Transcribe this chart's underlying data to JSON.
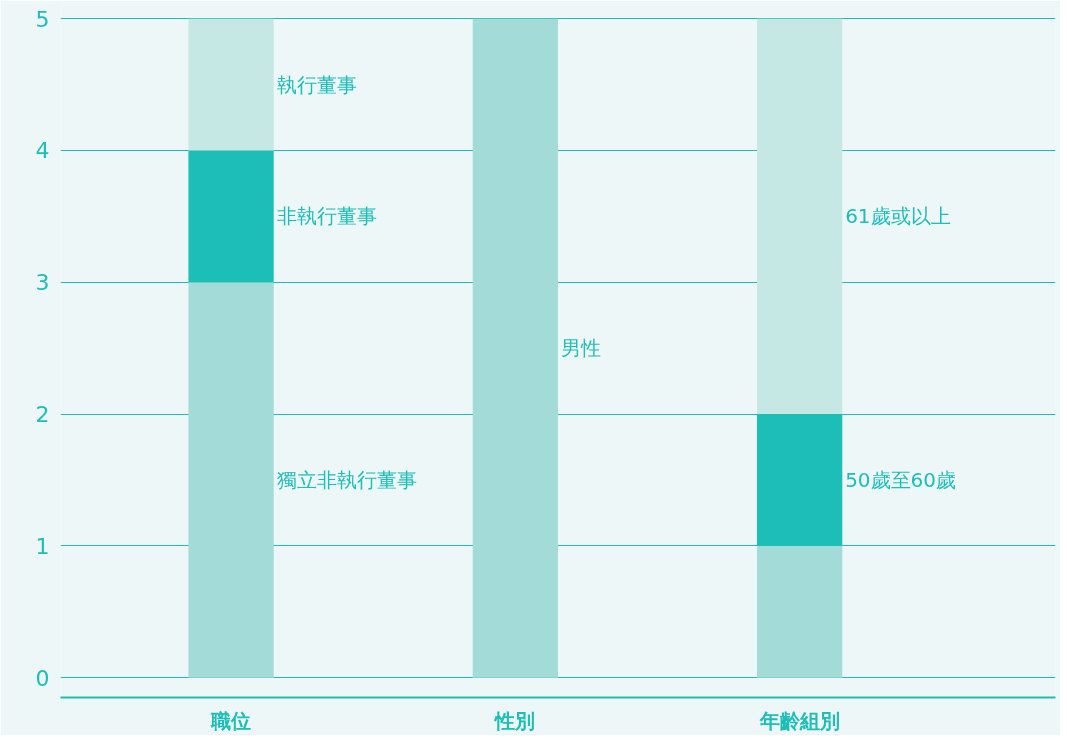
{
  "chart_data": {
    "type": "bar",
    "stacked": true,
    "categories": [
      "職位",
      "性別",
      "年齡組別"
    ],
    "series": [
      {
        "name": "獨立非執行董事",
        "color": "#a2dbd8",
        "values": [
          3,
          null,
          null
        ]
      },
      {
        "name": "非執行董事",
        "color": "#1dbdb8",
        "values": [
          1,
          null,
          null
        ]
      },
      {
        "name": "執行董事",
        "color": "#c6e8e5",
        "values": [
          1,
          null,
          null
        ]
      },
      {
        "name": "男性",
        "color": "#a2dbd8",
        "values": [
          null,
          5,
          null
        ]
      },
      {
        "color": "#a2dbd8",
        "values": [
          null,
          null,
          1
        ]
      },
      {
        "name": "50歲至60歲",
        "color": "#1dbdb8",
        "values": [
          null,
          null,
          1
        ]
      },
      {
        "name": "61歲或以上",
        "color": "#c6e8e5",
        "values": [
          null,
          null,
          3
        ]
      }
    ],
    "ylim": [
      0,
      5
    ],
    "yticks": [
      0,
      1,
      2,
      3,
      4,
      5
    ],
    "grid": "y",
    "legend": false
  }
}
